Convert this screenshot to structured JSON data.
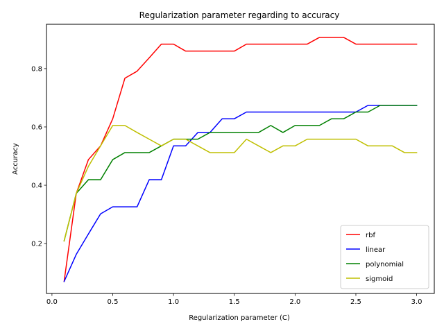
{
  "chart_data": {
    "type": "line",
    "title": "Regularization parameter regarding to accuracy",
    "xlabel": "Regularization parameter (C)",
    "ylabel": "Accuracy",
    "xlim": [
      -0.045,
      3.145
    ],
    "ylim": [
      0.029,
      0.952
    ],
    "xticks": [
      0.0,
      0.5,
      1.0,
      1.5,
      2.0,
      2.5,
      3.0
    ],
    "xtick_labels": [
      "0.0",
      "0.5",
      "1.0",
      "1.5",
      "2.0",
      "2.5",
      "3.0"
    ],
    "yticks": [
      0.2,
      0.4,
      0.6,
      0.8
    ],
    "ytick_labels": [
      "0.2",
      "0.4",
      "0.6",
      "0.8"
    ],
    "grid": false,
    "legend_position": "lower right",
    "x": [
      0.1,
      0.2,
      0.3,
      0.4,
      0.5,
      0.6,
      0.7,
      0.8,
      0.9,
      1.0,
      1.1,
      1.2,
      1.3,
      1.4,
      1.5,
      1.6,
      1.7,
      1.8,
      1.9,
      2.0,
      2.1,
      2.2,
      2.3,
      2.4,
      2.5,
      2.6,
      2.7,
      2.8,
      2.9,
      3.0
    ],
    "series": [
      {
        "name": "rbf",
        "color": "#ff0000",
        "values": [
          0.07,
          0.372,
          0.488,
          0.535,
          0.628,
          0.767,
          0.791,
          0.837,
          0.884,
          0.884,
          0.86,
          0.86,
          0.86,
          0.86,
          0.86,
          0.884,
          0.884,
          0.884,
          0.884,
          0.884,
          0.884,
          0.907,
          0.907,
          0.907,
          0.884,
          0.884,
          0.884,
          0.884,
          0.884,
          0.884
        ]
      },
      {
        "name": "linear",
        "color": "#0000ff",
        "values": [
          0.07,
          0.163,
          0.233,
          0.302,
          0.326,
          0.326,
          0.326,
          0.419,
          0.419,
          0.535,
          0.535,
          0.581,
          0.581,
          0.628,
          0.628,
          0.651,
          0.651,
          0.651,
          0.651,
          0.651,
          0.651,
          0.651,
          0.651,
          0.651,
          0.651,
          0.674,
          0.674,
          0.674,
          0.674,
          0.674
        ]
      },
      {
        "name": "polynomial",
        "color": "#008000",
        "values": [
          0.209,
          0.372,
          0.419,
          0.419,
          0.488,
          0.512,
          0.512,
          0.512,
          0.535,
          0.558,
          0.558,
          0.558,
          0.581,
          0.581,
          0.581,
          0.581,
          0.581,
          0.605,
          0.581,
          0.605,
          0.605,
          0.605,
          0.628,
          0.628,
          0.651,
          0.651,
          0.674,
          0.674,
          0.674,
          0.674
        ]
      },
      {
        "name": "sigmoid",
        "color": "#bfbf00",
        "values": [
          0.209,
          0.372,
          0.465,
          0.535,
          0.605,
          0.605,
          0.581,
          0.558,
          0.535,
          0.558,
          0.558,
          0.535,
          0.512,
          0.512,
          0.512,
          0.558,
          0.535,
          0.512,
          0.535,
          0.535,
          0.558,
          0.558,
          0.558,
          0.558,
          0.558,
          0.535,
          0.535,
          0.535,
          0.512,
          0.512
        ]
      }
    ]
  }
}
